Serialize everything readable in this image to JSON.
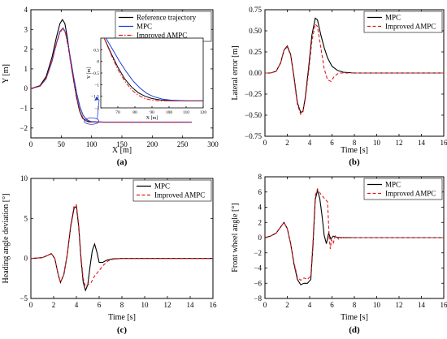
{
  "chart_data": [
    {
      "id": "a",
      "type": "line",
      "panel_label": "(a)",
      "xlabel": "X [m]",
      "ylabel": "Y [m]",
      "xlim": [
        0,
        300
      ],
      "ylim": [
        -2.5,
        4
      ],
      "xticks": [
        0,
        50,
        100,
        150,
        200,
        250,
        300
      ],
      "yticks": [
        -2,
        -1,
        0,
        1,
        2,
        3,
        4
      ],
      "legend": "top-right",
      "series": [
        {
          "name": "Reference trajectory",
          "color": "#000000",
          "dash": "solid",
          "x": [
            0,
            15,
            25,
            35,
            42,
            48,
            52,
            56,
            60,
            65,
            70,
            75,
            80,
            85,
            90,
            95,
            100,
            120,
            150,
            200,
            265
          ],
          "y": [
            0,
            0.15,
            0.6,
            1.6,
            2.6,
            3.3,
            3.5,
            3.3,
            2.6,
            1.5,
            0.5,
            -0.4,
            -1.1,
            -1.5,
            -1.62,
            -1.67,
            -1.69,
            -1.7,
            -1.7,
            -1.7,
            -1.7
          ]
        },
        {
          "name": "MPC",
          "color": "#1f3fd6",
          "dash": "solid",
          "x": [
            0,
            15,
            25,
            35,
            42,
            48,
            53,
            57,
            61,
            66,
            71,
            76,
            81,
            86,
            91,
            96,
            101,
            120,
            150,
            200,
            265
          ],
          "y": [
            0,
            0.12,
            0.5,
            1.4,
            2.3,
            2.9,
            3.08,
            2.85,
            2.3,
            1.4,
            0.5,
            -0.3,
            -0.95,
            -1.35,
            -1.55,
            -1.64,
            -1.68,
            -1.7,
            -1.7,
            -1.7,
            -1.7
          ]
        },
        {
          "name": "Improved AMPC",
          "color": "#e8141b",
          "dash": "dashdot",
          "x": [
            0,
            15,
            25,
            35,
            42,
            48,
            53,
            57,
            61,
            66,
            71,
            76,
            81,
            86,
            91,
            96,
            101,
            120,
            150,
            200,
            265
          ],
          "y": [
            0,
            0.12,
            0.5,
            1.4,
            2.25,
            2.85,
            3.05,
            2.8,
            2.2,
            1.2,
            0.3,
            -0.5,
            -1.15,
            -1.5,
            -1.66,
            -1.7,
            -1.7,
            -1.7,
            -1.7,
            -1.7,
            -1.7
          ]
        }
      ],
      "inset": {
        "xlabel": "X [m]",
        "ylabel": "Y [m]",
        "xlim": [
          60,
          120
        ],
        "ylim": [
          -2,
          1
        ],
        "xticks": [
          70,
          80,
          90,
          100,
          110,
          120
        ],
        "yticks": [
          -2,
          -1.5,
          -1,
          -0.5,
          0,
          0.5
        ],
        "series": [
          {
            "name": "Reference trajectory",
            "color": "#000000",
            "dash": "solid",
            "x": [
              62,
              66,
              70,
              74,
              78,
              82,
              86,
              90,
              95,
              100,
              110,
              120
            ],
            "y": [
              1.0,
              0.35,
              -0.25,
              -0.75,
              -1.1,
              -1.35,
              -1.5,
              -1.6,
              -1.66,
              -1.69,
              -1.7,
              -1.7
            ]
          },
          {
            "name": "MPC",
            "color": "#1f3fd6",
            "dash": "solid",
            "x": [
              63,
              67,
              71,
              75,
              79,
              83,
              87,
              91,
              96,
              101,
              110,
              120
            ],
            "y": [
              1.0,
              0.5,
              0.0,
              -0.45,
              -0.85,
              -1.15,
              -1.38,
              -1.52,
              -1.62,
              -1.67,
              -1.7,
              -1.7
            ]
          },
          {
            "name": "Improved AMPC",
            "color": "#e8141b",
            "dash": "dashdot",
            "x": [
              62,
              66,
              70,
              74,
              78,
              82,
              86,
              90,
              95,
              100,
              110,
              120
            ],
            "y": [
              1.0,
              0.3,
              -0.35,
              -0.85,
              -1.22,
              -1.46,
              -1.6,
              -1.67,
              -1.7,
              -1.7,
              -1.7,
              -1.7
            ]
          }
        ]
      }
    },
    {
      "id": "b",
      "type": "line",
      "panel_label": "(b)",
      "xlabel": "Time [s]",
      "ylabel": "Lateral error [m]",
      "xlim": [
        0,
        16
      ],
      "ylim": [
        -0.75,
        0.75
      ],
      "xticks": [
        0,
        2,
        4,
        6,
        8,
        10,
        12,
        14,
        16
      ],
      "yticks": [
        -0.75,
        -0.5,
        -0.25,
        0,
        0.25,
        0.5,
        0.75
      ],
      "yticklabels": [
        "−0.75",
        "−0.50",
        "−0.25",
        "0.00",
        "0.25",
        "0.50",
        "0.75"
      ],
      "legend": "top-right",
      "series": [
        {
          "name": "MPC",
          "color": "#000000",
          "dash": "solid",
          "x": [
            0,
            0.5,
            1.0,
            1.4,
            1.7,
            2.0,
            2.3,
            2.6,
            2.9,
            3.2,
            3.4,
            3.6,
            3.9,
            4.2,
            4.5,
            4.7,
            5.0,
            5.3,
            5.6,
            6.0,
            6.5,
            7.0,
            8,
            10,
            12,
            16
          ],
          "y": [
            0,
            0.0,
            0.02,
            0.12,
            0.27,
            0.32,
            0.22,
            -0.05,
            -0.35,
            -0.47,
            -0.45,
            -0.3,
            0.05,
            0.45,
            0.65,
            0.63,
            0.45,
            0.3,
            0.18,
            0.08,
            0.03,
            0.01,
            0,
            0,
            0,
            0
          ]
        },
        {
          "name": "Improved AMPC",
          "color": "#e8141b",
          "dash": "dash",
          "x": [
            0,
            0.5,
            1.0,
            1.4,
            1.7,
            2.0,
            2.3,
            2.6,
            2.9,
            3.2,
            3.4,
            3.6,
            3.9,
            4.2,
            4.5,
            4.7,
            5.0,
            5.3,
            5.6,
            5.9,
            6.2,
            6.6,
            7.0,
            8,
            10,
            16
          ],
          "y": [
            0,
            0.0,
            0.02,
            0.12,
            0.27,
            0.31,
            0.21,
            -0.07,
            -0.37,
            -0.49,
            -0.46,
            -0.32,
            0.0,
            0.38,
            0.58,
            0.55,
            0.3,
            0.05,
            -0.08,
            -0.1,
            -0.04,
            0.0,
            0.0,
            0,
            0,
            0
          ]
        }
      ]
    },
    {
      "id": "c",
      "type": "line",
      "panel_label": "(c)",
      "xlabel": "Time [s]",
      "ylabel": "Heading angle deviation [°]",
      "xlim": [
        0,
        16
      ],
      "ylim": [
        -5,
        10
      ],
      "xticks": [
        0,
        2,
        4,
        6,
        8,
        10,
        12,
        14,
        16
      ],
      "yticks": [
        -5,
        0,
        5,
        10
      ],
      "legend": "top-right",
      "series": [
        {
          "name": "MPC",
          "color": "#000000",
          "dash": "solid",
          "x": [
            0,
            1.0,
            1.5,
            1.8,
            2.1,
            2.4,
            2.6,
            2.9,
            3.2,
            3.5,
            3.8,
            4.0,
            4.2,
            4.4,
            4.6,
            4.8,
            5.0,
            5.2,
            5.4,
            5.6,
            5.8,
            6.0,
            6.3,
            6.7,
            7.2,
            8,
            10,
            16
          ],
          "y": [
            0,
            0.1,
            0.4,
            0.6,
            0.0,
            -2.0,
            -3.0,
            -2.0,
            0.5,
            4.0,
            6.3,
            6.5,
            4.0,
            0.0,
            -3.0,
            -4.0,
            -3.3,
            -1.0,
            1.0,
            1.8,
            0.8,
            -0.5,
            -0.5,
            -0.2,
            -0.05,
            0,
            0,
            0
          ]
        },
        {
          "name": "Improved AMPC",
          "color": "#e8141b",
          "dash": "dash",
          "x": [
            0,
            1.0,
            1.5,
            1.8,
            2.1,
            2.4,
            2.6,
            2.9,
            3.2,
            3.5,
            3.8,
            4.0,
            4.2,
            4.4,
            4.6,
            4.8,
            5.0,
            5.3,
            5.6,
            6.0,
            6.4,
            6.8,
            7.2,
            8,
            10,
            16
          ],
          "y": [
            0,
            0.1,
            0.4,
            0.6,
            0.0,
            -2.0,
            -3.0,
            -2.0,
            0.6,
            4.2,
            6.6,
            6.7,
            4.3,
            0.3,
            -2.5,
            -3.5,
            -3.3,
            -3.0,
            -2.2,
            -1.5,
            -0.8,
            -0.3,
            -0.1,
            0,
            0,
            0
          ]
        }
      ]
    },
    {
      "id": "d",
      "type": "line",
      "panel_label": "(d)",
      "xlabel": "Time [s]",
      "ylabel": "Front wheel angle [°]",
      "xlim": [
        0,
        16
      ],
      "ylim": [
        -8,
        8
      ],
      "xticks": [
        0,
        2,
        4,
        6,
        8,
        10,
        12,
        14,
        16
      ],
      "yticks": [
        -8,
        -6,
        -4,
        -2,
        0,
        2,
        4,
        6,
        8
      ],
      "legend": "top-right",
      "series": [
        {
          "name": "MPC",
          "color": "#000000",
          "dash": "solid",
          "x": [
            0,
            0.5,
            1.0,
            1.4,
            1.7,
            2.0,
            2.3,
            2.6,
            2.9,
            3.2,
            3.5,
            3.8,
            4.1,
            4.3,
            4.5,
            4.7,
            4.9,
            5.1,
            5.3,
            5.5,
            5.7,
            5.9,
            6.1,
            6.4,
            6.8,
            7.5,
            8,
            10,
            16
          ],
          "y": [
            0,
            0.2,
            0.6,
            1.4,
            2.0,
            1.2,
            -0.8,
            -3.5,
            -5.5,
            -6.2,
            -6.0,
            -6.0,
            -5.5,
            -1.0,
            5.0,
            6.2,
            5.2,
            3.0,
            0.3,
            -0.8,
            0.6,
            -0.2,
            0.2,
            0.05,
            0,
            0,
            0,
            0,
            0
          ]
        },
        {
          "name": "Improved AMPC",
          "color": "#e8141b",
          "dash": "dash",
          "x": [
            0,
            0.5,
            1.0,
            1.4,
            1.7,
            2.0,
            2.3,
            2.6,
            2.9,
            3.2,
            3.5,
            3.8,
            4.1,
            4.3,
            4.5,
            4.7,
            5.0,
            5.3,
            5.6,
            5.75,
            5.85,
            5.95,
            6.1,
            6.3,
            6.6,
            7.0,
            8,
            10,
            16
          ],
          "y": [
            0,
            0.2,
            0.6,
            1.4,
            2.0,
            1.2,
            -0.8,
            -3.3,
            -5.2,
            -5.6,
            -5.3,
            -5.5,
            -5.0,
            -0.5,
            5.5,
            6.4,
            5.7,
            5.2,
            4.7,
            0.0,
            -1.5,
            -0.3,
            -0.8,
            0.3,
            -0.2,
            0.05,
            0,
            0,
            0
          ]
        }
      ]
    }
  ]
}
